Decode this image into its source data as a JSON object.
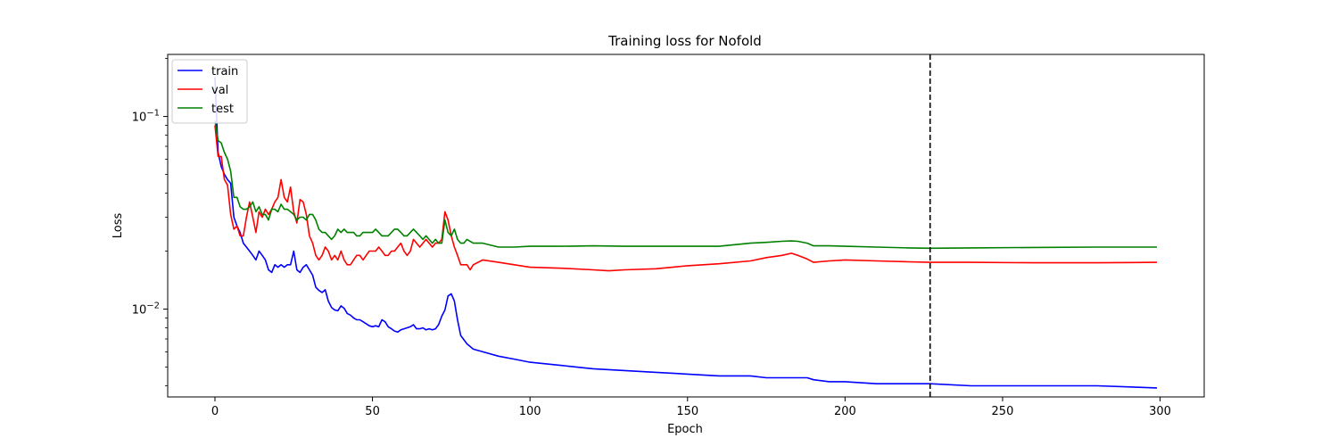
{
  "chart_data": {
    "type": "line",
    "title": "Training loss for Nofold",
    "xlabel": "Epoch",
    "ylabel": "Loss",
    "xlim": [
      -15,
      314
    ],
    "ylim": [
      0.0035,
      0.21
    ],
    "yscale": "log",
    "xticks": [
      0,
      50,
      100,
      150,
      200,
      250,
      300
    ],
    "xtick_labels": [
      "0",
      "50",
      "100",
      "150",
      "200",
      "250",
      "300"
    ],
    "yticks": [
      0.01,
      0.1
    ],
    "ytick_labels": [
      {
        "base": "10",
        "exp": "−2"
      },
      {
        "base": "10",
        "exp": "−1"
      }
    ],
    "legend_position": "upper left",
    "vline": {
      "x": 227,
      "style": "dashed",
      "color": "#000000"
    },
    "series": [
      {
        "name": "train",
        "color": "#0000ff",
        "x": [
          0,
          1,
          2,
          3,
          4,
          5,
          6,
          7,
          8,
          9,
          10,
          11,
          12,
          13,
          14,
          15,
          16,
          17,
          18,
          19,
          20,
          21,
          22,
          23,
          24,
          25,
          26,
          27,
          28,
          29,
          30,
          31,
          32,
          33,
          34,
          35,
          36,
          37,
          38,
          39,
          40,
          41,
          42,
          43,
          44,
          45,
          46,
          47,
          48,
          49,
          50,
          51,
          52,
          53,
          54,
          55,
          56,
          57,
          58,
          59,
          60,
          61,
          62,
          63,
          64,
          65,
          66,
          67,
          68,
          69,
          70,
          71,
          72,
          73,
          74,
          75,
          76,
          77,
          78,
          80,
          82,
          85,
          90,
          95,
          100,
          110,
          120,
          130,
          140,
          150,
          160,
          170,
          175,
          180,
          185,
          188,
          190,
          195,
          200,
          210,
          220,
          227,
          240,
          260,
          280,
          299
        ],
        "y": [
          0.16,
          0.065,
          0.055,
          0.05,
          0.047,
          0.045,
          0.03,
          0.027,
          0.025,
          0.022,
          0.021,
          0.02,
          0.019,
          0.018,
          0.02,
          0.019,
          0.018,
          0.016,
          0.0155,
          0.017,
          0.0165,
          0.017,
          0.0165,
          0.017,
          0.017,
          0.02,
          0.016,
          0.0155,
          0.0165,
          0.017,
          0.016,
          0.015,
          0.013,
          0.0125,
          0.0122,
          0.0126,
          0.011,
          0.0102,
          0.0099,
          0.0098,
          0.0104,
          0.0101,
          0.0095,
          0.0093,
          0.009,
          0.0088,
          0.0088,
          0.0086,
          0.0084,
          0.0082,
          0.0081,
          0.0082,
          0.0081,
          0.0088,
          0.0086,
          0.0081,
          0.0079,
          0.0077,
          0.0076,
          0.0078,
          0.0079,
          0.008,
          0.0081,
          0.0083,
          0.0079,
          0.0079,
          0.008,
          0.0078,
          0.0079,
          0.0078,
          0.0079,
          0.0083,
          0.0092,
          0.0099,
          0.0117,
          0.012,
          0.011,
          0.0088,
          0.0073,
          0.0066,
          0.0062,
          0.006,
          0.0057,
          0.0055,
          0.0053,
          0.0051,
          0.0049,
          0.0048,
          0.0047,
          0.0046,
          0.0045,
          0.0045,
          0.0044,
          0.0044,
          0.0044,
          0.0044,
          0.0043,
          0.0042,
          0.0042,
          0.0041,
          0.0041,
          0.0041,
          0.004,
          0.004,
          0.004,
          0.0039
        ]
      },
      {
        "name": "val",
        "color": "#ff0000",
        "x": [
          0,
          1,
          2,
          3,
          4,
          5,
          6,
          7,
          8,
          9,
          10,
          11,
          12,
          13,
          14,
          15,
          16,
          17,
          18,
          19,
          20,
          21,
          22,
          23,
          24,
          25,
          26,
          27,
          28,
          29,
          30,
          31,
          32,
          33,
          34,
          35,
          36,
          37,
          38,
          39,
          40,
          41,
          42,
          43,
          44,
          45,
          46,
          47,
          48,
          49,
          50,
          51,
          52,
          53,
          54,
          55,
          56,
          57,
          58,
          59,
          60,
          61,
          62,
          63,
          64,
          65,
          66,
          67,
          68,
          69,
          70,
          71,
          72,
          73,
          74,
          75,
          76,
          77,
          78,
          79,
          80,
          81,
          82,
          85,
          90,
          95,
          100,
          110,
          120,
          125,
          130,
          140,
          150,
          160,
          170,
          175,
          180,
          183,
          185,
          188,
          190,
          195,
          200,
          210,
          220,
          227,
          240,
          260,
          280,
          299
        ],
        "y": [
          0.09,
          0.062,
          0.062,
          0.047,
          0.044,
          0.031,
          0.026,
          0.027,
          0.024,
          0.024,
          0.03,
          0.036,
          0.03,
          0.025,
          0.032,
          0.03,
          0.033,
          0.031,
          0.033,
          0.036,
          0.038,
          0.047,
          0.038,
          0.036,
          0.043,
          0.032,
          0.028,
          0.037,
          0.036,
          0.031,
          0.024,
          0.022,
          0.019,
          0.018,
          0.019,
          0.021,
          0.02,
          0.018,
          0.019,
          0.018,
          0.02,
          0.018,
          0.017,
          0.017,
          0.018,
          0.019,
          0.019,
          0.018,
          0.019,
          0.02,
          0.02,
          0.02,
          0.021,
          0.02,
          0.019,
          0.019,
          0.02,
          0.02,
          0.021,
          0.022,
          0.02,
          0.019,
          0.02,
          0.023,
          0.022,
          0.021,
          0.022,
          0.023,
          0.022,
          0.021,
          0.022,
          0.022,
          0.023,
          0.032,
          0.029,
          0.024,
          0.021,
          0.019,
          0.017,
          0.017,
          0.017,
          0.016,
          0.017,
          0.018,
          0.0175,
          0.017,
          0.0165,
          0.0163,
          0.016,
          0.0158,
          0.016,
          0.0162,
          0.0168,
          0.0172,
          0.0178,
          0.0185,
          0.019,
          0.0195,
          0.019,
          0.0182,
          0.0175,
          0.0178,
          0.018,
          0.0178,
          0.0176,
          0.0175,
          0.0175,
          0.0174,
          0.0174,
          0.0175
        ]
      },
      {
        "name": "test",
        "color": "#008000",
        "x": [
          0,
          1,
          2,
          3,
          4,
          5,
          6,
          7,
          8,
          9,
          10,
          11,
          12,
          13,
          14,
          15,
          16,
          17,
          18,
          19,
          20,
          21,
          22,
          23,
          24,
          25,
          26,
          27,
          28,
          29,
          30,
          31,
          32,
          33,
          34,
          35,
          36,
          37,
          38,
          39,
          40,
          41,
          42,
          43,
          44,
          45,
          46,
          47,
          48,
          49,
          50,
          51,
          52,
          53,
          54,
          55,
          56,
          57,
          58,
          59,
          60,
          61,
          62,
          63,
          64,
          65,
          66,
          67,
          68,
          69,
          70,
          71,
          72,
          73,
          74,
          75,
          76,
          77,
          78,
          79,
          80,
          82,
          85,
          90,
          95,
          100,
          110,
          120,
          130,
          140,
          150,
          160,
          170,
          175,
          180,
          183,
          185,
          188,
          190,
          195,
          200,
          210,
          220,
          227,
          240,
          260,
          280,
          299
        ],
        "y": [
          0.095,
          0.075,
          0.073,
          0.065,
          0.06,
          0.052,
          0.038,
          0.038,
          0.034,
          0.033,
          0.033,
          0.034,
          0.036,
          0.032,
          0.034,
          0.031,
          0.031,
          0.029,
          0.033,
          0.033,
          0.032,
          0.035,
          0.033,
          0.033,
          0.032,
          0.031,
          0.029,
          0.03,
          0.03,
          0.029,
          0.031,
          0.031,
          0.029,
          0.026,
          0.025,
          0.025,
          0.024,
          0.023,
          0.024,
          0.026,
          0.025,
          0.026,
          0.025,
          0.025,
          0.025,
          0.024,
          0.024,
          0.025,
          0.025,
          0.025,
          0.025,
          0.026,
          0.025,
          0.024,
          0.024,
          0.024,
          0.025,
          0.026,
          0.026,
          0.025,
          0.024,
          0.024,
          0.025,
          0.026,
          0.025,
          0.024,
          0.023,
          0.024,
          0.023,
          0.022,
          0.023,
          0.022,
          0.022,
          0.029,
          0.025,
          0.024,
          0.026,
          0.023,
          0.022,
          0.022,
          0.023,
          0.022,
          0.022,
          0.021,
          0.021,
          0.0212,
          0.0212,
          0.0213,
          0.0212,
          0.0212,
          0.0212,
          0.0212,
          0.022,
          0.0222,
          0.0225,
          0.0226,
          0.0225,
          0.022,
          0.0213,
          0.0213,
          0.0212,
          0.021,
          0.0208,
          0.0207,
          0.0208,
          0.0209,
          0.021,
          0.021
        ]
      }
    ]
  }
}
